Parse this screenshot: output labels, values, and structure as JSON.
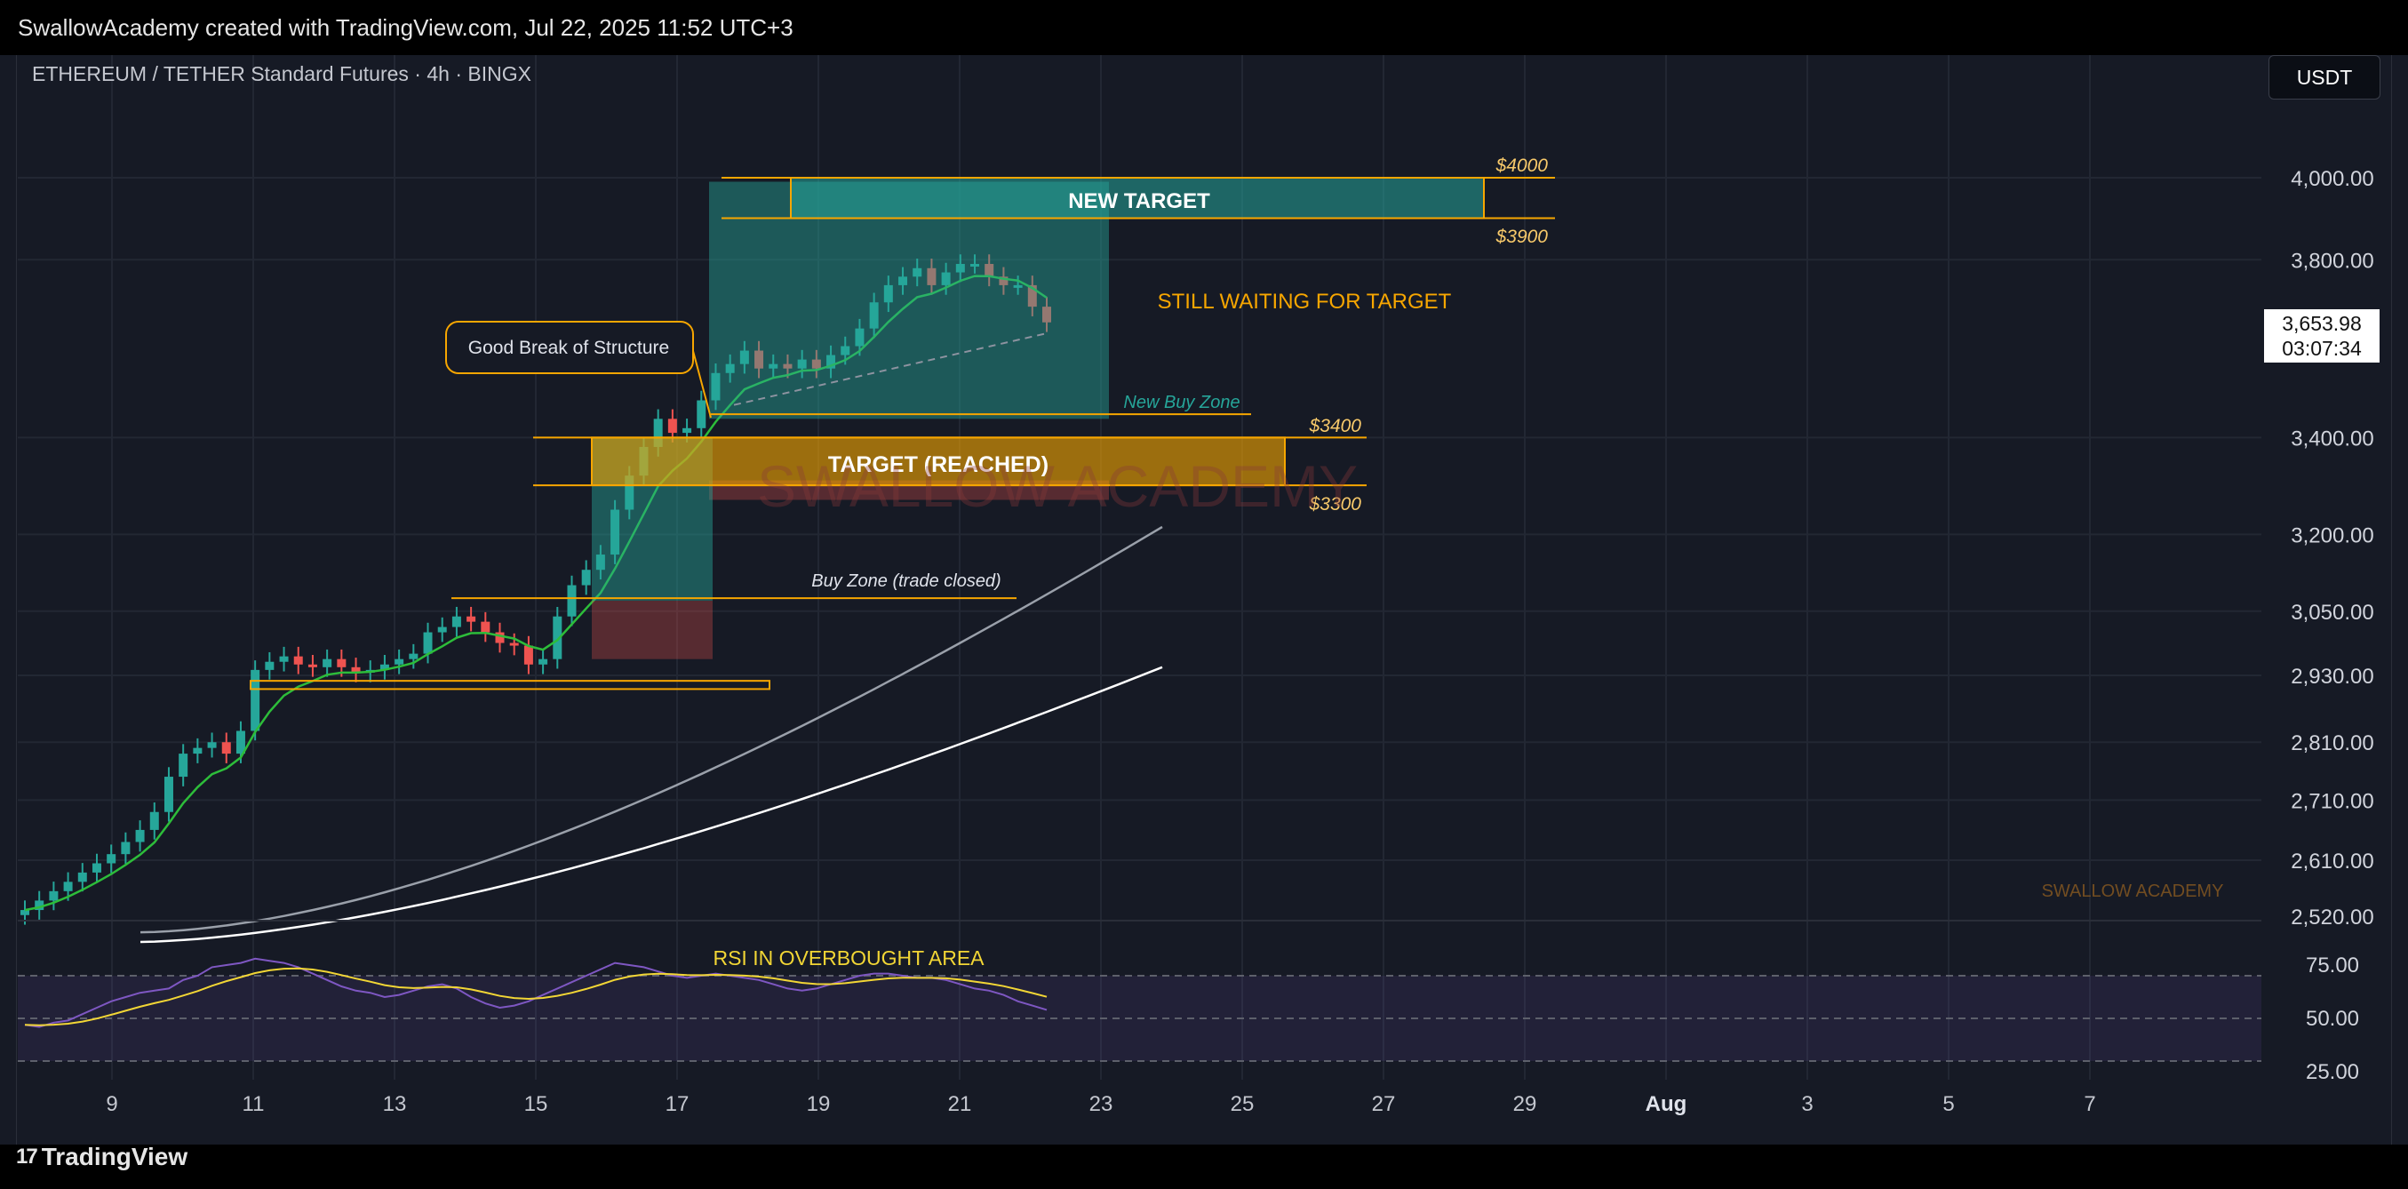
{
  "header": {
    "attribution": "SwallowAcademy created with TradingView.com, Jul 22, 2025 11:52 UTC+3",
    "symbol": "ETHEREUM / TETHER Standard Futures · 4h · BINGX",
    "currency_button": "USDT"
  },
  "footer": {
    "brand": "TradingView",
    "brand_mark": "17"
  },
  "price_badge": {
    "price": "3,653.98",
    "countdown": "03:07:34"
  },
  "colors": {
    "background": "#161a25",
    "up_candle": "#26a69a",
    "down_candle": "#ef5350",
    "ema_short": "#2dbd3a",
    "ma_mid": "#9aa0aa",
    "ma_long": "#ffffff",
    "zone_orange": "#f7a600",
    "zone_teal": "#26a69a",
    "rsi_line": "#7e57c2",
    "rsi_ma": "#f2d635"
  },
  "chart_data": {
    "type": "candlestick",
    "title": "ETHEREUM / TETHER Standard Futures · 4h · BINGX",
    "y_axis": {
      "scale": "log",
      "ticks": [
        "4,000.00",
        "3,800.00",
        "3,400.00",
        "3,200.00",
        "3,050.00",
        "2,930.00",
        "2,810.00",
        "2,710.00",
        "2,610.00",
        "2,520.00"
      ]
    },
    "x_axis": {
      "ticks": [
        "9",
        "11",
        "13",
        "15",
        "17",
        "19",
        "21",
        "23",
        "25",
        "27",
        "29",
        "Aug",
        "3",
        "5",
        "7"
      ]
    },
    "closes": [
      2530,
      2545,
      2560,
      2575,
      2590,
      2605,
      2620,
      2640,
      2660,
      2690,
      2750,
      2790,
      2800,
      2810,
      2790,
      2830,
      2940,
      2955,
      2965,
      2950,
      2945,
      2960,
      2945,
      2935,
      2940,
      2950,
      2960,
      2970,
      3010,
      3020,
      3040,
      3030,
      3010,
      2990,
      2985,
      2950,
      2960,
      3040,
      3100,
      3130,
      3160,
      3250,
      3320,
      3380,
      3440,
      3410,
      3420,
      3480,
      3540,
      3560,
      3590,
      3550,
      3560,
      3550,
      3570,
      3550,
      3580,
      3600,
      3640,
      3700,
      3740,
      3760,
      3780,
      3740,
      3770,
      3790,
      3790,
      3760,
      3740,
      3740,
      3690,
      3653.98
    ],
    "indicators": {
      "ema_green": "short moving average (green)",
      "ma_grey": "medium moving average (grey)",
      "ma_white": "long moving average (white)"
    },
    "annotations": {
      "new_target": "NEW TARGET",
      "p4000": "$4000",
      "p3900": "$3900",
      "waiting": "STILL WAITING FOR TARGET",
      "bos": "Good Break of Structure",
      "new_buy_zone": "New Buy Zone",
      "p3400": "$3400",
      "target_reached": "TARGET (REACHED)",
      "p3300": "$3300",
      "buy_zone_closed": "Buy Zone (trade closed)",
      "watermark": "SWALLOW ACADEMY",
      "watermark_small": "SWALLOW ACADEMY",
      "rsi_note": "RSI IN OVERBOUGHT AREA"
    },
    "rsi": {
      "ticks": [
        "75.00",
        "50.00",
        "25.00"
      ],
      "levels": [
        70,
        50,
        30
      ],
      "values": [
        47,
        46,
        48,
        49,
        52,
        55,
        58,
        60,
        62,
        63,
        64,
        68,
        70,
        74,
        75,
        76,
        78,
        77,
        76,
        74,
        71,
        68,
        65,
        63,
        62,
        60,
        61,
        63,
        65,
        66,
        64,
        60,
        57,
        55,
        56,
        58,
        61,
        64,
        67,
        70,
        73,
        76,
        75,
        74,
        72,
        70,
        69,
        70,
        71,
        70,
        69,
        68,
        66,
        64,
        63,
        64,
        66,
        68,
        70,
        71,
        71,
        70,
        69,
        69,
        68,
        66,
        64,
        63,
        61,
        58,
        56,
        54
      ]
    }
  }
}
